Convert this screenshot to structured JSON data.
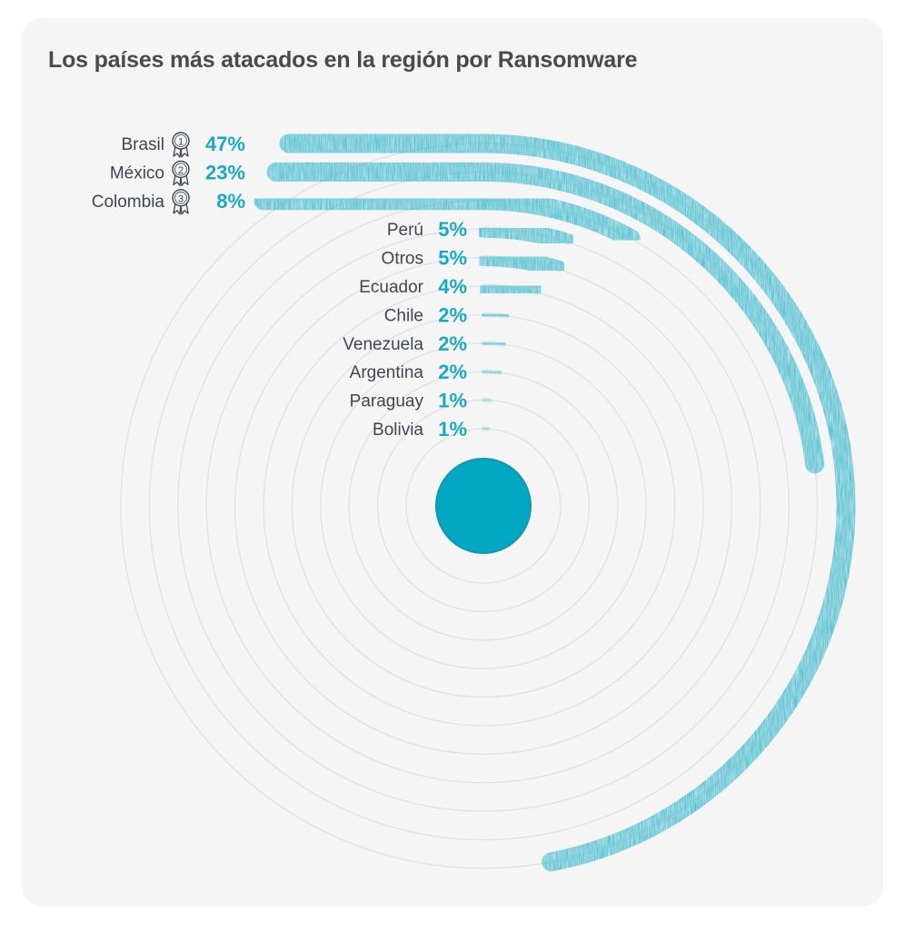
{
  "colors": {
    "accent": "#18aac4",
    "bar": "#2bb3c9",
    "text": "#3d4652",
    "ring": "#e2e2e2",
    "icon": "#3d4652"
  },
  "chart_data": {
    "type": "radial-bar",
    "title": "Los países más atacados en la región por Ransomware",
    "unit": "%",
    "categories": [
      "Brasil",
      "México",
      "Colombia",
      "Perú",
      "Otros",
      "Ecuador",
      "Chile",
      "Venezuela",
      "Argentina",
      "Paraguay",
      "Bolivia"
    ],
    "values": [
      47,
      23,
      8,
      5,
      5,
      4,
      2,
      2,
      2,
      1,
      1
    ],
    "labels": [
      "47%",
      "23%",
      "8%",
      "5%",
      "5%",
      "4%",
      "2%",
      "2%",
      "2%",
      "1%",
      "1%"
    ],
    "ranks": [
      "1",
      "2",
      "3",
      "",
      "",
      "",
      "",
      "",
      "",
      "",
      ""
    ]
  }
}
